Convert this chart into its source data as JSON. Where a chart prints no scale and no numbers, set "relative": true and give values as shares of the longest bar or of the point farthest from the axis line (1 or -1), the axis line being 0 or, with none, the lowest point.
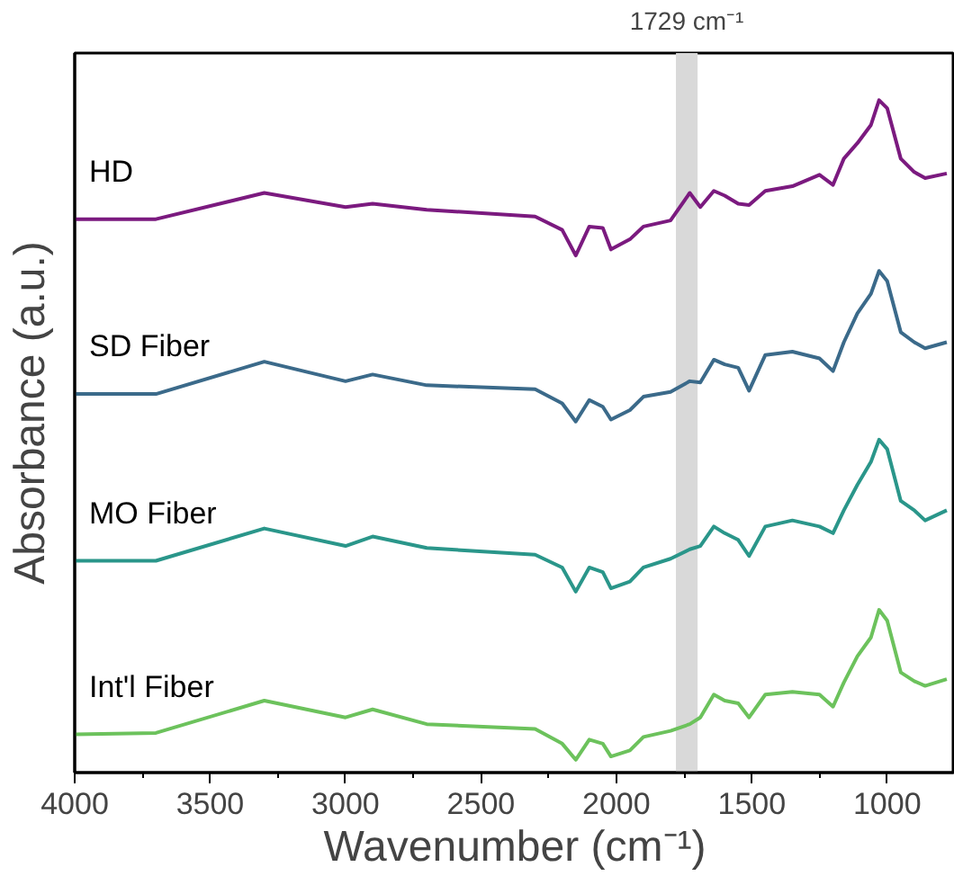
{
  "chart_data": {
    "type": "line",
    "relative": true,
    "xlabel": "Wavenumber (cm⁻¹)",
    "ylabel": "Absorbance (a.u.)",
    "xlim": [
      4000,
      750
    ],
    "xticks": [
      4000,
      {
        "value": 3750,
        "label": null
      },
      3500,
      {
        "value": 3250,
        "label": null
      },
      3000,
      {
        "value": 2750,
        "label": null
      },
      2500,
      {
        "value": 2250,
        "label": null
      },
      2000,
      {
        "value": 1750,
        "label": null
      },
      1500,
      {
        "value": 1250,
        "label": null
      },
      1000
    ],
    "x": [
      4000,
      3700,
      3300,
      3000,
      2900,
      2700,
      2300,
      2200,
      2150,
      2100,
      2050,
      2020,
      1950,
      1900,
      1800,
      1729,
      1690,
      1640,
      1600,
      1550,
      1510,
      1450,
      1350,
      1250,
      1200,
      1160,
      1110,
      1060,
      1030,
      1000,
      950,
      900,
      860,
      780
    ],
    "series": [
      {
        "name": "HD",
        "color": "#7b1a7f",
        "values": [
          0.823,
          0.823,
          0.862,
          0.841,
          0.846,
          0.837,
          0.827,
          0.807,
          0.769,
          0.812,
          0.81,
          0.778,
          0.793,
          0.812,
          0.821,
          0.862,
          0.841,
          0.865,
          0.858,
          0.846,
          0.844,
          0.865,
          0.872,
          0.889,
          0.874,
          0.913,
          0.936,
          0.963,
          1.0,
          0.988,
          0.913,
          0.893,
          0.884,
          0.891
        ]
      },
      {
        "name": "SD Fiber",
        "color": "#3b6a8a",
        "values": [
          0.563,
          0.563,
          0.611,
          0.582,
          0.592,
          0.576,
          0.57,
          0.549,
          0.522,
          0.554,
          0.544,
          0.525,
          0.539,
          0.559,
          0.566,
          0.582,
          0.58,
          0.614,
          0.607,
          0.602,
          0.568,
          0.621,
          0.626,
          0.616,
          0.597,
          0.64,
          0.683,
          0.712,
          0.746,
          0.731,
          0.655,
          0.64,
          0.631,
          0.64
        ]
      },
      {
        "name": "MO Fiber",
        "color": "#2a968a",
        "values": [
          0.315,
          0.315,
          0.363,
          0.337,
          0.351,
          0.334,
          0.324,
          0.305,
          0.269,
          0.305,
          0.298,
          0.274,
          0.284,
          0.305,
          0.318,
          0.332,
          0.337,
          0.366,
          0.356,
          0.346,
          0.322,
          0.366,
          0.375,
          0.366,
          0.356,
          0.39,
          0.428,
          0.462,
          0.495,
          0.481,
          0.404,
          0.39,
          0.375,
          0.39
        ]
      },
      {
        "name": "Int'l Fiber",
        "color": "#6cc25c",
        "values": [
          0.057,
          0.059,
          0.107,
          0.082,
          0.094,
          0.072,
          0.065,
          0.043,
          0.019,
          0.049,
          0.043,
          0.024,
          0.033,
          0.053,
          0.062,
          0.072,
          0.082,
          0.116,
          0.107,
          0.103,
          0.082,
          0.116,
          0.12,
          0.116,
          0.098,
          0.134,
          0.173,
          0.201,
          0.242,
          0.226,
          0.149,
          0.136,
          0.129,
          0.139
        ]
      }
    ],
    "bands": [
      {
        "axis": "x",
        "from": 1780,
        "to": 1700,
        "label": "1729 cm⁻¹",
        "color": "#d9d9d9"
      }
    ],
    "grid": false,
    "legend": false,
    "tick_labels": "x"
  }
}
